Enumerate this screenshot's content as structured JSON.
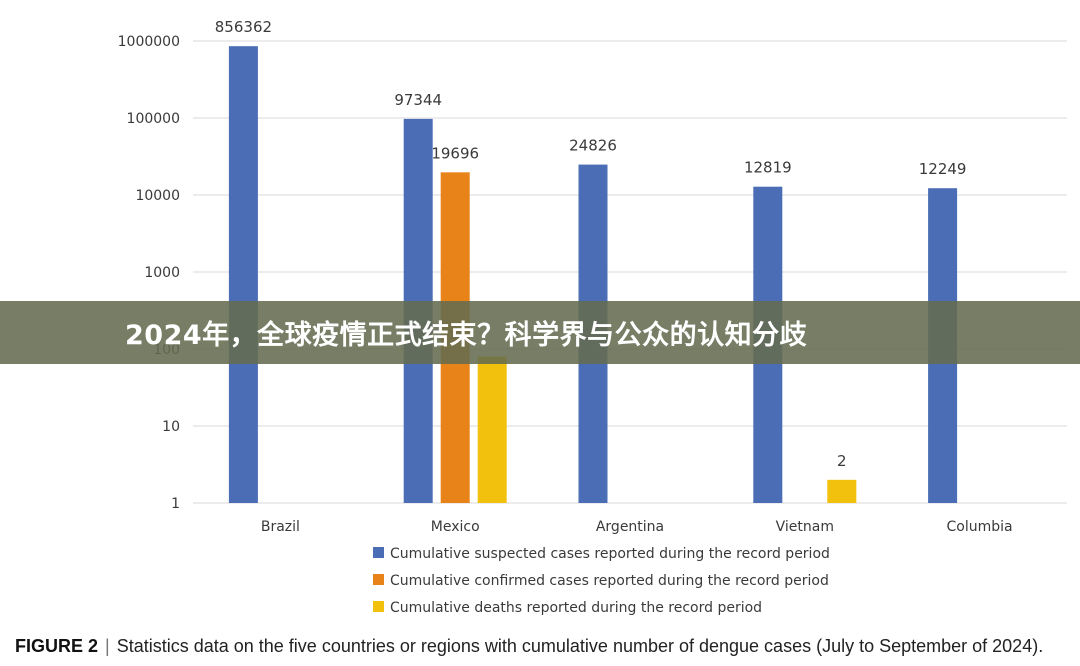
{
  "banner": {
    "title": "2024年，全球疫情正式结束？科学界与公众的认知分歧"
  },
  "caption": {
    "figure_label": "FIGURE 2",
    "separator": "|",
    "text": "Statistics data on the five countries or regions with cumulative number of dengue cases (July to September of 2024)."
  },
  "colors": {
    "suspected": "#4a6db5",
    "confirmed": "#e8831a",
    "deaths": "#f2c10d",
    "grid": "#d9d9d9"
  },
  "chart_data": {
    "type": "bar",
    "y_scale": "log",
    "ylim": [
      1,
      1000000
    ],
    "y_ticks": [
      "1",
      "10",
      "100",
      "1000",
      "10000",
      "100000",
      "1000000"
    ],
    "categories": [
      "Brazil",
      "Mexico",
      "Argentina",
      "Vietnam",
      "Columbia"
    ],
    "series": [
      {
        "name": "Cumulative suspected cases reported during the record period",
        "values": [
          856362,
          97344,
          24826,
          12819,
          12249
        ],
        "labels": [
          "856362",
          "97344",
          "24826",
          "12819",
          "12249"
        ]
      },
      {
        "name": "Cumulative confirmed cases reported during the record period",
        "values": [
          null,
          19696,
          null,
          null,
          null
        ],
        "labels": [
          null,
          "19696",
          null,
          null,
          null
        ]
      },
      {
        "name": "Cumulative deaths reported during the record period",
        "values": [
          null,
          80,
          null,
          2,
          null
        ],
        "labels": [
          null,
          null,
          null,
          "2",
          null
        ]
      }
    ],
    "grid": true,
    "legend_position": "bottom"
  }
}
